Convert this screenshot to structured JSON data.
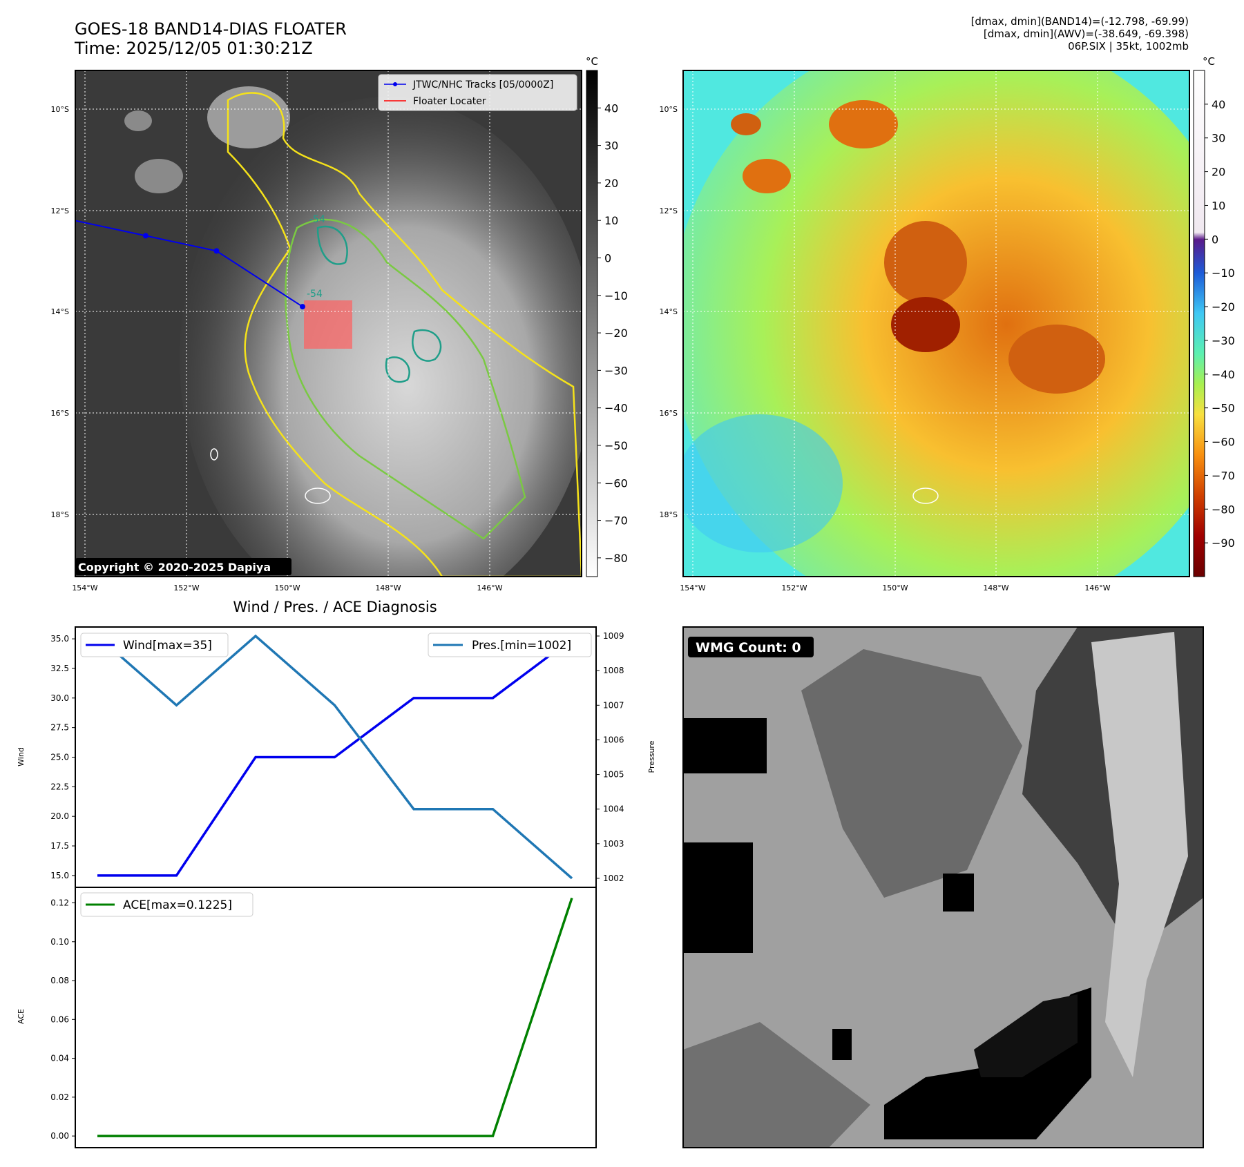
{
  "header": {
    "title_line1": "GOES-18 BAND14-DIAS FLOATER",
    "title_line2": "Time: 2025/12/05 01:30:21Z",
    "stats_line1": "[dmax, dmin](BAND14)=(-12.798, -69.99)",
    "stats_line2": "[dmax, dmin](AWV)=(-38.649, -69.398)",
    "stats_line3": "06P.SIX | 35kt, 1002mb"
  },
  "map_axes": {
    "lat_labels": [
      "10°S",
      "12°S",
      "14°S",
      "16°S",
      "18°S"
    ],
    "lon_labels": [
      "154°W",
      "152°W",
      "150°W",
      "148°W",
      "146°W"
    ]
  },
  "panel_ir": {
    "legend": {
      "track": "JTWC/NHC Tracks [05/0000Z]",
      "locater": "Floater Locater"
    },
    "copyright": "Copyright © 2020-2025 Dapiya",
    "contour_labels": [
      "-54",
      "-54"
    ],
    "colorbar": {
      "unit": "°C",
      "ticks": [
        "40",
        "30",
        "20",
        "10",
        "0",
        "−10",
        "−20",
        "−30",
        "−40",
        "−50",
        "−60",
        "−70",
        "−80"
      ],
      "range": [
        50,
        -85
      ]
    },
    "track_points": [
      {
        "lat": -12.2,
        "lon": -154.2
      },
      {
        "lat": -12.5,
        "lon": -152.8
      },
      {
        "lat": -12.8,
        "lon": -151.4
      },
      {
        "lat": -13.9,
        "lon": -149.7
      }
    ],
    "colors": {
      "track": "#0000ee",
      "locater": "#ff0000",
      "contour_outer": "#f5e21a",
      "contour_mid": "#7ac943",
      "contour_inner": "#1f9e89"
    }
  },
  "panel_awv": {
    "colorbar": {
      "unit": "°C",
      "ticks": [
        "40",
        "30",
        "20",
        "10",
        "0",
        "−10",
        "−20",
        "−30",
        "−40",
        "−50",
        "−60",
        "−70",
        "−80",
        "−90"
      ],
      "range": [
        50,
        -100
      ]
    }
  },
  "panel_wmg": {
    "label": "WMG Count: 0"
  },
  "chart_data": [
    {
      "type": "line",
      "title": "Wind / Pres. / ACE Diagnosis",
      "x": [
        0,
        1,
        2,
        3,
        4,
        5,
        6
      ],
      "series": [
        {
          "name": "Wind[max=35]",
          "axis": "left",
          "values": [
            15,
            15,
            25,
            25,
            30,
            30,
            35
          ],
          "color": "#0000ee"
        },
        {
          "name": "Pres.[min=1002]",
          "axis": "right",
          "values": [
            1009,
            1007,
            1009,
            1007,
            1004,
            1004,
            1002
          ],
          "color": "#1f77b4"
        }
      ],
      "ylabel": "Wind",
      "ylabel_right": "Pressure",
      "ylim": [
        14.0,
        36.0
      ],
      "ylim_right": [
        1001.74,
        1009.26
      ],
      "yticks": [
        "15.0",
        "17.5",
        "20.0",
        "22.5",
        "25.0",
        "27.5",
        "30.0",
        "32.5",
        "35.0"
      ],
      "yticks_right": [
        "1002",
        "1003",
        "1004",
        "1005",
        "1006",
        "1007",
        "1008",
        "1009"
      ]
    },
    {
      "type": "line",
      "x": [
        0,
        1,
        2,
        3,
        4,
        5,
        6
      ],
      "series": [
        {
          "name": "ACE[max=0.1225]",
          "values": [
            0,
            0,
            0,
            0,
            0,
            0,
            0.1225
          ],
          "color": "#008000"
        }
      ],
      "ylabel": "ACE",
      "ylim": [
        -0.006,
        0.128
      ],
      "yticks": [
        "0.00",
        "0.02",
        "0.04",
        "0.06",
        "0.08",
        "0.10",
        "0.12"
      ]
    }
  ]
}
